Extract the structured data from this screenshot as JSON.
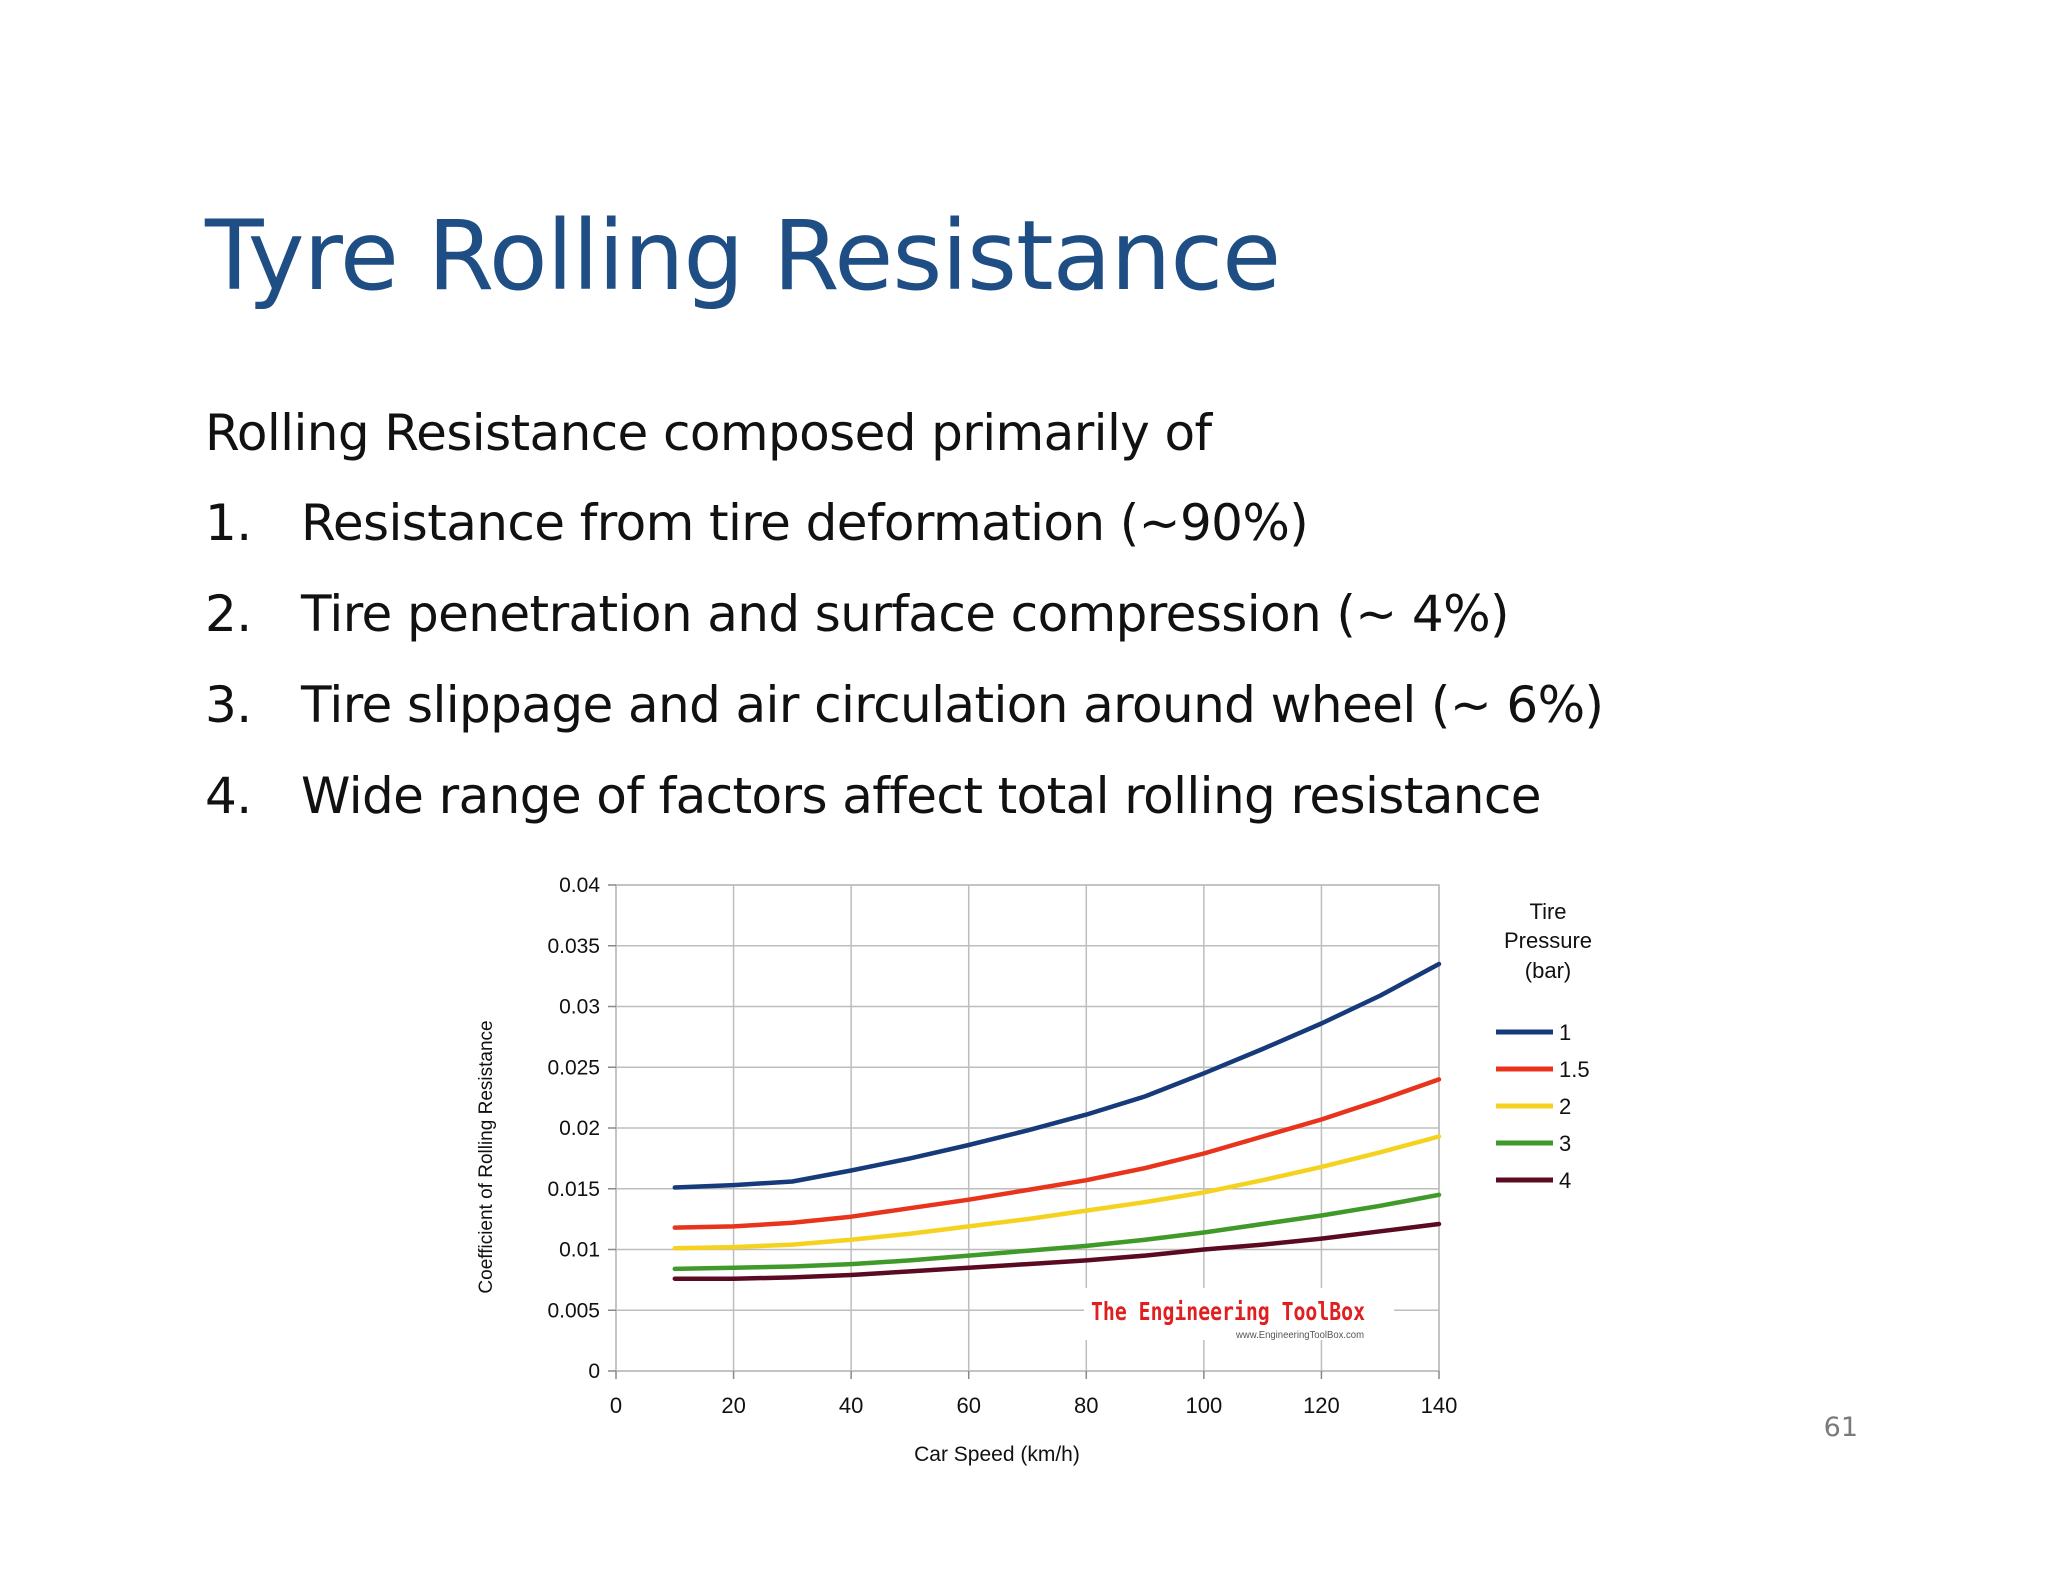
{
  "slide": {
    "title": "Tyre Rolling Resistance",
    "intro": "Rolling Resistance composed primarily of",
    "points": [
      {
        "num": "1.",
        "text": "Resistance from tire deformation (∼90%)"
      },
      {
        "num": "2.",
        "text": "Tire penetration and surface compression (∼ 4%)"
      },
      {
        "num": "3.",
        "text": "Tire slippage and air circulation around wheel (∼ 6%)"
      },
      {
        "num": "4.",
        "text": "Wide range of factors affect total rolling resistance"
      }
    ],
    "page_number": "61"
  },
  "chart_data": {
    "type": "line",
    "title": "",
    "xlabel": "Car Speed (km/h)",
    "ylabel": "Coefficient of Rolling Resistance",
    "xlim": [
      0,
      140
    ],
    "ylim": [
      0,
      0.04
    ],
    "xticks": [
      "0",
      "20",
      "40",
      "60",
      "80",
      "100",
      "120",
      "140"
    ],
    "yticks": [
      "0",
      "0.005",
      "0.01",
      "0.015",
      "0.02",
      "0.025",
      "0.03",
      "0.035",
      "0.04"
    ],
    "grid": true,
    "legend_title": [
      "Tire",
      "Pressure",
      "(bar)"
    ],
    "legend_position": "right",
    "watermark": "The Engineering ToolBox",
    "watermark_url": "www.EngineeringToolBox.com",
    "x": [
      10,
      20,
      30,
      40,
      50,
      60,
      70,
      80,
      90,
      100,
      110,
      120,
      130,
      140
    ],
    "series": [
      {
        "name": "1",
        "color": "#163a7a",
        "values": [
          0.0151,
          0.0153,
          0.0156,
          0.0165,
          0.0175,
          0.0186,
          0.0198,
          0.0211,
          0.0226,
          0.0245,
          0.0265,
          0.0286,
          0.0309,
          0.0335
        ]
      },
      {
        "name": "1.5",
        "color": "#e8341c",
        "values": [
          0.0118,
          0.0119,
          0.0122,
          0.0127,
          0.0134,
          0.0141,
          0.0149,
          0.0157,
          0.0167,
          0.0179,
          0.0193,
          0.0207,
          0.0223,
          0.024
        ]
      },
      {
        "name": "2",
        "color": "#f5d21f",
        "values": [
          0.0101,
          0.0102,
          0.0104,
          0.0108,
          0.0113,
          0.0119,
          0.0125,
          0.0132,
          0.0139,
          0.0147,
          0.0157,
          0.0168,
          0.018,
          0.0193
        ]
      },
      {
        "name": "3",
        "color": "#3f9a2a",
        "values": [
          0.0084,
          0.0085,
          0.0086,
          0.0088,
          0.0091,
          0.0095,
          0.0099,
          0.0103,
          0.0108,
          0.0114,
          0.0121,
          0.0128,
          0.0136,
          0.0145
        ]
      },
      {
        "name": "4",
        "color": "#5a0b22",
        "values": [
          0.0076,
          0.0076,
          0.0077,
          0.0079,
          0.0082,
          0.0085,
          0.0088,
          0.0091,
          0.0095,
          0.01,
          0.0104,
          0.0109,
          0.0115,
          0.0121
        ]
      }
    ]
  }
}
